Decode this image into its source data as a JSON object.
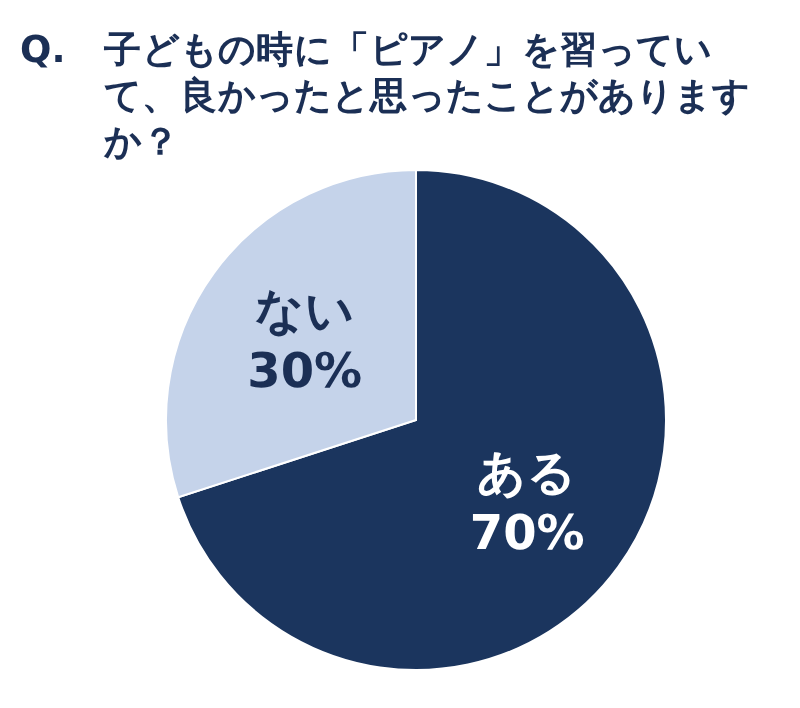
{
  "chart_data": {
    "type": "pie",
    "title": "Q.　子どもの時に「ピアノ」を習っていて、良かったと思ったことがありますか？",
    "categories": [
      "ある",
      "ない"
    ],
    "values": [
      70,
      30
    ],
    "colors": [
      "#1b355e",
      "#c5d3ea"
    ],
    "value_labels": [
      "70%",
      "30%"
    ]
  }
}
